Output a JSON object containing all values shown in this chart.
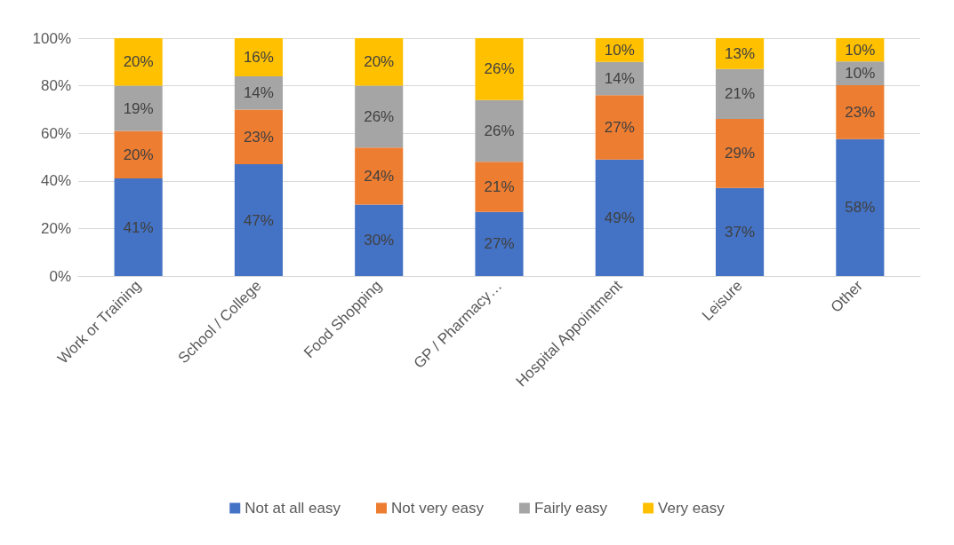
{
  "chart_data": {
    "type": "bar",
    "stacked": true,
    "categories": [
      "Work or Training",
      "School / College",
      "Food Shopping",
      "GP / Pharmacy…",
      "Hospital Appointment",
      "Leisure",
      "Other"
    ],
    "series": [
      {
        "name": "Not at all easy",
        "color": "#4472c4",
        "values": [
          41,
          47,
          30,
          27,
          49,
          37,
          57.6
        ],
        "value_labels": [
          "41%",
          "47%",
          "30%",
          "27%",
          "49%",
          "37%",
          "58%"
        ]
      },
      {
        "name": "Not very easy",
        "color": "#ed7d31",
        "values": [
          20,
          23,
          24,
          21,
          27,
          29,
          22.6
        ],
        "value_labels": [
          "20%",
          "23%",
          "24%",
          "21%",
          "27%",
          "29%",
          "23%"
        ]
      },
      {
        "name": "Fairly easy",
        "color": "#a5a5a5",
        "values": [
          19,
          14,
          26,
          26,
          14,
          21,
          10
        ],
        "value_labels": [
          "19%",
          "14%",
          "26%",
          "26%",
          "14%",
          "21%",
          "10%"
        ]
      },
      {
        "name": "Very easy",
        "color": "#ffc000",
        "values": [
          20,
          16,
          20,
          26,
          10,
          13,
          9.8
        ],
        "value_labels": [
          "20%",
          "16%",
          "20%",
          "26%",
          "10%",
          "13%",
          "10%"
        ]
      }
    ],
    "ylim": [
      0,
      100
    ],
    "yticks": [
      {
        "value": 0,
        "label": "0%"
      },
      {
        "value": 20,
        "label": "20%"
      },
      {
        "value": 40,
        "label": "40%"
      },
      {
        "value": 60,
        "label": "60%"
      },
      {
        "value": 80,
        "label": "80%"
      },
      {
        "value": 100,
        "label": "100%"
      }
    ],
    "grid": "y",
    "legend": "bottom"
  }
}
